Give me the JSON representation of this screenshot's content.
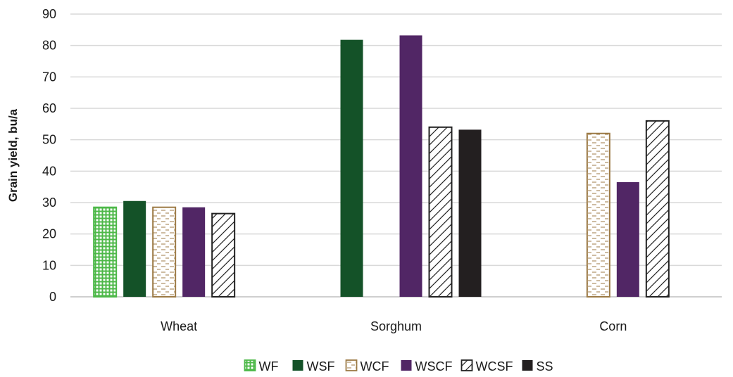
{
  "chart_data": {
    "type": "bar",
    "title": "",
    "xlabel": "",
    "ylabel": "Grain yield, bu/a",
    "ylim": [
      0,
      90
    ],
    "yticks": [
      0,
      10,
      20,
      30,
      40,
      50,
      60,
      70,
      80,
      90
    ],
    "grid": true,
    "legend_position": "bottom",
    "categories": [
      "Wheat",
      "Sorghum",
      "Corn"
    ],
    "series": [
      {
        "name": "WF",
        "values": [
          28.5,
          null,
          null
        ],
        "color": "#4db848",
        "pattern": "grid"
      },
      {
        "name": "WSF",
        "values": [
          30.5,
          81.8,
          null
        ],
        "color": "#145228",
        "pattern": "solid"
      },
      {
        "name": "WCF",
        "values": [
          28.5,
          null,
          52.0
        ],
        "color": "#9c7a45",
        "pattern": "dashes"
      },
      {
        "name": "WSCF",
        "values": [
          28.5,
          83.2,
          36.5
        ],
        "color": "#512665",
        "pattern": "solid"
      },
      {
        "name": "WCSF",
        "values": [
          26.5,
          54.0,
          56.0
        ],
        "color": "#222222",
        "pattern": "diagonal"
      },
      {
        "name": "SS",
        "values": [
          null,
          53.2,
          null
        ],
        "color": "#231f20",
        "pattern": "solid"
      }
    ]
  }
}
